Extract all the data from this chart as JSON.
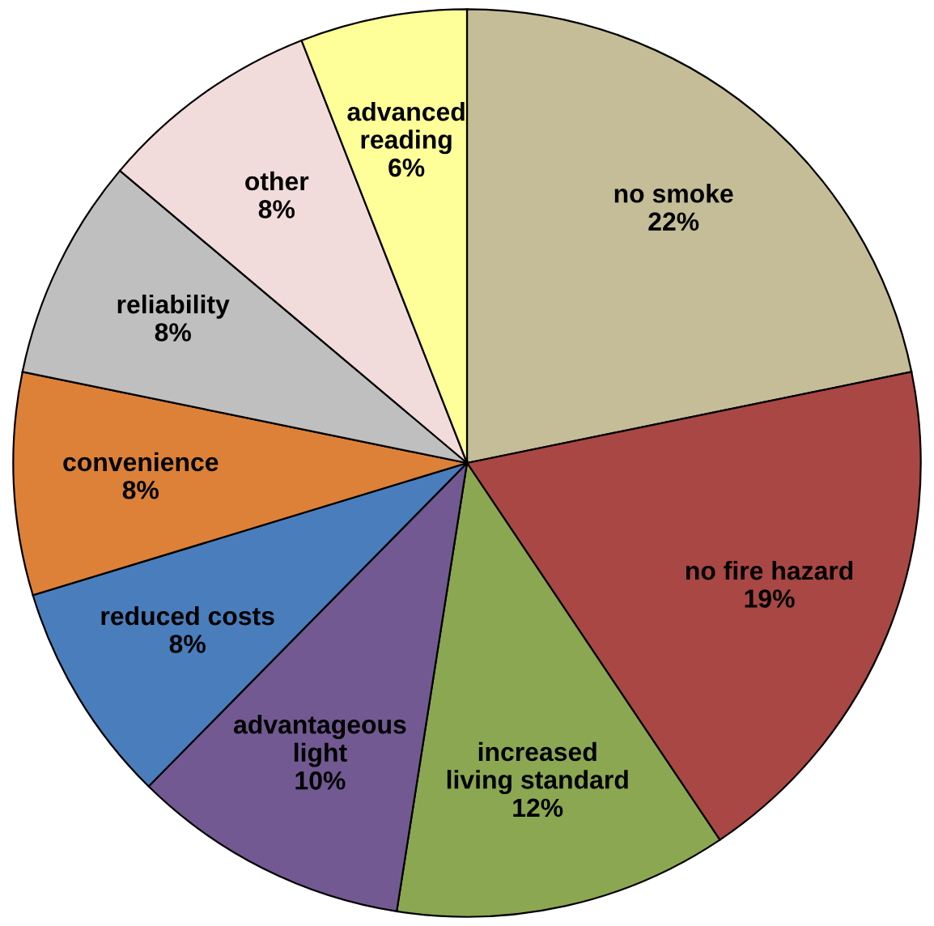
{
  "chart_data": {
    "type": "pie",
    "categories": [
      "no smoke",
      "no fire hazard",
      "increased\nliving standard",
      "advantageous\nlight",
      "reduced costs",
      "convenience",
      "reliability",
      "other",
      "advanced\nreading"
    ],
    "values": [
      22,
      19,
      12,
      10,
      8,
      8,
      8,
      8,
      6
    ],
    "value_labels": [
      "22%",
      "19%",
      "12%",
      "10%",
      "8%",
      "8%",
      "8%",
      "8%",
      "6%"
    ],
    "colors": [
      "#c4bd97",
      "#a94744",
      "#8ba751",
      "#725992",
      "#4a7dbb",
      "#dd8139",
      "#bfbfbf",
      "#f2dcdb",
      "#ffff99"
    ],
    "legend": false
  }
}
